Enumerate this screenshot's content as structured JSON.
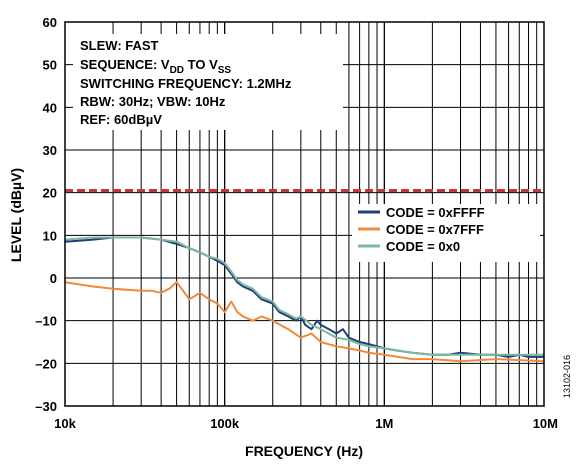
{
  "chart_data": {
    "type": "line",
    "xlabel": "FREQUENCY (Hz)",
    "ylabel": "LEVEL (dBµV)",
    "x_scale": "log",
    "xlim": [
      10000,
      10000000
    ],
    "ylim": [
      -30,
      60
    ],
    "x_ticks": [
      {
        "value": 10000,
        "label": "10k"
      },
      {
        "value": 100000,
        "label": "100k"
      },
      {
        "value": 1000000,
        "label": "1M"
      },
      {
        "value": 10000000,
        "label": "10M"
      }
    ],
    "y_ticks": [
      -30,
      -20,
      -10,
      0,
      10,
      20,
      30,
      40,
      50,
      60
    ],
    "grid": true,
    "legend_position": "right",
    "annotation_lines": [
      "SLEW: FAST",
      "SEQUENCE: V",
      "DD",
      " TO V",
      "SS",
      "SWITCHING FREQUENCY: 1.2MHz",
      "RBW: 30Hz; VBW: 10Hz",
      "REF: 60dBµV"
    ],
    "limit_line": {
      "y": 20.5,
      "color": "#c0393b"
    },
    "figure_id": "13102-016",
    "series": [
      {
        "name": "CODE = 0xFFFF",
        "color": "#1f3f7a",
        "x": [
          10000,
          15000,
          20000,
          30000,
          40000,
          50000,
          60000,
          70000,
          80000,
          90000,
          100000,
          110000,
          120000,
          130000,
          150000,
          170000,
          200000,
          220000,
          250000,
          280000,
          300000,
          320000,
          350000,
          380000,
          400000,
          450000,
          500000,
          550000,
          600000,
          700000,
          800000,
          900000,
          1000000,
          1200000,
          1500000,
          2000000,
          2500000,
          3000000,
          4000000,
          5000000,
          6000000,
          7000000,
          8000000,
          10000000
        ],
        "y": [
          8.5,
          9,
          9.5,
          9.5,
          9,
          8,
          7,
          6,
          5,
          4,
          3,
          1,
          -1,
          -2,
          -3,
          -5,
          -6,
          -8,
          -9,
          -10,
          -9,
          -11,
          -12,
          -10,
          -11,
          -12,
          -13,
          -12,
          -14,
          -15,
          -15.5,
          -16,
          -16.5,
          -17,
          -17.5,
          -18,
          -18,
          -17.5,
          -18,
          -18,
          -18.5,
          -18,
          -18.5,
          -18.5
        ]
      },
      {
        "name": "CODE = 0x7FFF",
        "color": "#f08a3c",
        "x": [
          10000,
          15000,
          20000,
          30000,
          35000,
          40000,
          45000,
          50000,
          55000,
          60000,
          70000,
          80000,
          90000,
          100000,
          110000,
          120000,
          130000,
          150000,
          170000,
          200000,
          250000,
          300000,
          350000,
          400000,
          500000,
          600000,
          700000,
          800000,
          1000000,
          1500000,
          2000000,
          3000000,
          5000000,
          10000000
        ],
        "y": [
          -1,
          -2,
          -2.5,
          -3,
          -3,
          -3.5,
          -2.5,
          -1,
          -3,
          -5,
          -3.5,
          -5,
          -6,
          -8,
          -5.5,
          -8,
          -9,
          -10,
          -9,
          -10,
          -12,
          -14,
          -13,
          -15,
          -16,
          -16.5,
          -17,
          -17.5,
          -18,
          -19,
          -19,
          -19.5,
          -19,
          -19.5
        ]
      },
      {
        "name": "CODE = 0x0",
        "color": "#7fb89c",
        "x": [
          10000,
          15000,
          20000,
          30000,
          40000,
          50000,
          60000,
          70000,
          80000,
          90000,
          100000,
          110000,
          120000,
          130000,
          150000,
          170000,
          200000,
          220000,
          250000,
          280000,
          300000,
          350000,
          400000,
          500000,
          600000,
          700000,
          800000,
          1000000,
          1500000,
          2000000,
          3000000,
          5000000,
          7000000,
          10000000
        ],
        "y": [
          9,
          9.5,
          9.5,
          9.5,
          9,
          8.5,
          7,
          6,
          5,
          4.5,
          3.5,
          1.5,
          -0.5,
          -1.5,
          -2.5,
          -4.5,
          -5.5,
          -7.5,
          -8.5,
          -9.5,
          -9,
          -11,
          -12,
          -14,
          -14.5,
          -15.5,
          -16,
          -16.5,
          -17.5,
          -18,
          -18,
          -18,
          -18,
          -18
        ]
      }
    ]
  }
}
